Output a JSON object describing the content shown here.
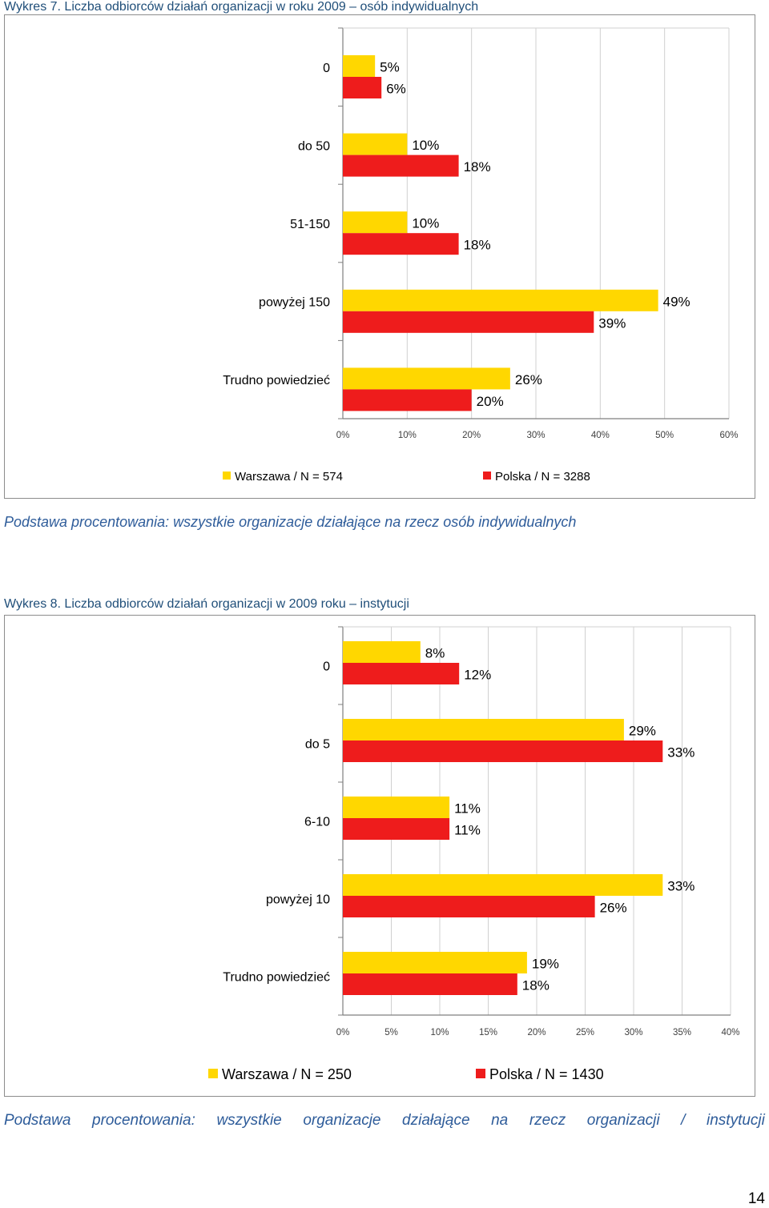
{
  "page": {
    "number": "14"
  },
  "chart_data": [
    {
      "type": "bar",
      "orientation": "horizontal",
      "title": "Wykres 7. Liczba odbiorców działań organizacji w roku 2009 – osób indywidualnych",
      "categories": [
        "0",
        "do 50",
        "51-150",
        "powyżej 150",
        "Trudno powiedzieć"
      ],
      "series": [
        {
          "name": "Warszawa / N = 574",
          "color": "#ffd700",
          "values": [
            5,
            10,
            10,
            49,
            26
          ],
          "labels": [
            "5%",
            "10%",
            "10%",
            "49%",
            "26%"
          ]
        },
        {
          "name": "Polska / N = 3288",
          "color": "#ee1c1c",
          "values": [
            6,
            18,
            18,
            39,
            20
          ],
          "labels": [
            "6%",
            "18%",
            "18%",
            "39%",
            "20%"
          ]
        }
      ],
      "xlim": [
        0,
        60
      ],
      "xticks": [
        "0%",
        "10%",
        "20%",
        "30%",
        "40%",
        "50%",
        "60%"
      ],
      "grid": true,
      "legend": "bottom",
      "caption": "Podstawa procentowania: wszystkie organizacje działające na rzecz osób indywidualnych"
    },
    {
      "type": "bar",
      "orientation": "horizontal",
      "title": "Wykres 8. Liczba odbiorców działań organizacji w 2009 roku – instytucji",
      "categories": [
        "0",
        "do 5",
        "6-10",
        "powyżej 10",
        "Trudno powiedzieć"
      ],
      "series": [
        {
          "name": "Warszawa / N = 250",
          "color": "#ffd700",
          "values": [
            8,
            29,
            11,
            33,
            19
          ],
          "labels": [
            "8%",
            "29%",
            "11%",
            "33%",
            "19%"
          ]
        },
        {
          "name": "Polska / N = 1430",
          "color": "#ee1c1c",
          "values": [
            12,
            33,
            11,
            26,
            18
          ],
          "labels": [
            "12%",
            "33%",
            "11%",
            "26%",
            "18%"
          ]
        }
      ],
      "xlim": [
        0,
        40
      ],
      "xticks": [
        "0%",
        "5%",
        "10%",
        "15%",
        "20%",
        "25%",
        "30%",
        "35%",
        "40%"
      ],
      "grid": true,
      "legend": "bottom",
      "caption_words": [
        "Podstawa",
        "procentowania:",
        "wszystkie",
        "organizacje",
        "działające",
        "na",
        "rzecz",
        "organizacji",
        "/",
        "instytucji"
      ]
    }
  ]
}
